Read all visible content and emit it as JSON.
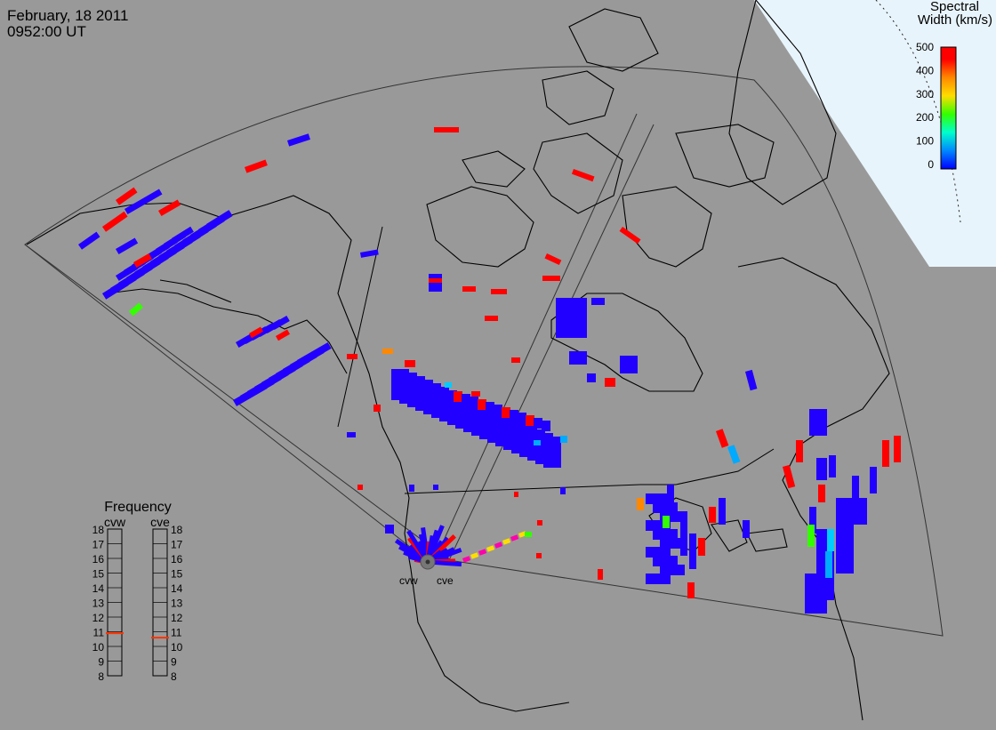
{
  "header": {
    "date": "February, 18 2011",
    "time": "0952:00 UT"
  },
  "colorbar": {
    "title_line1": "Spectral",
    "title_line2": "Width (km/s)",
    "ticks": [
      "500",
      "400",
      "300",
      "200",
      "100",
      "0"
    ],
    "range": [
      0,
      500
    ],
    "colors": [
      "#0000ff",
      "#00aaff",
      "#00ffcc",
      "#33ff00",
      "#ffdd00",
      "#ff8800",
      "#ff0000"
    ]
  },
  "radars": {
    "west": "cvw",
    "east": "cve"
  },
  "frequency": {
    "title": "Frequency",
    "scale_left": [
      "18",
      "17",
      "16",
      "15",
      "14",
      "13",
      "12",
      "11",
      "10",
      "9",
      "8"
    ],
    "scale_right": [
      "18",
      "17",
      "16",
      "15",
      "14",
      "13",
      "12",
      "11",
      "10",
      "9",
      "8"
    ],
    "cvw_mhz": 10.9,
    "cve_mhz": 10.6
  },
  "colors": {
    "background": "#999999",
    "ice": "#e8f4fb",
    "coast": "#000000",
    "fov": "#333333",
    "marker": "#ff3300"
  }
}
